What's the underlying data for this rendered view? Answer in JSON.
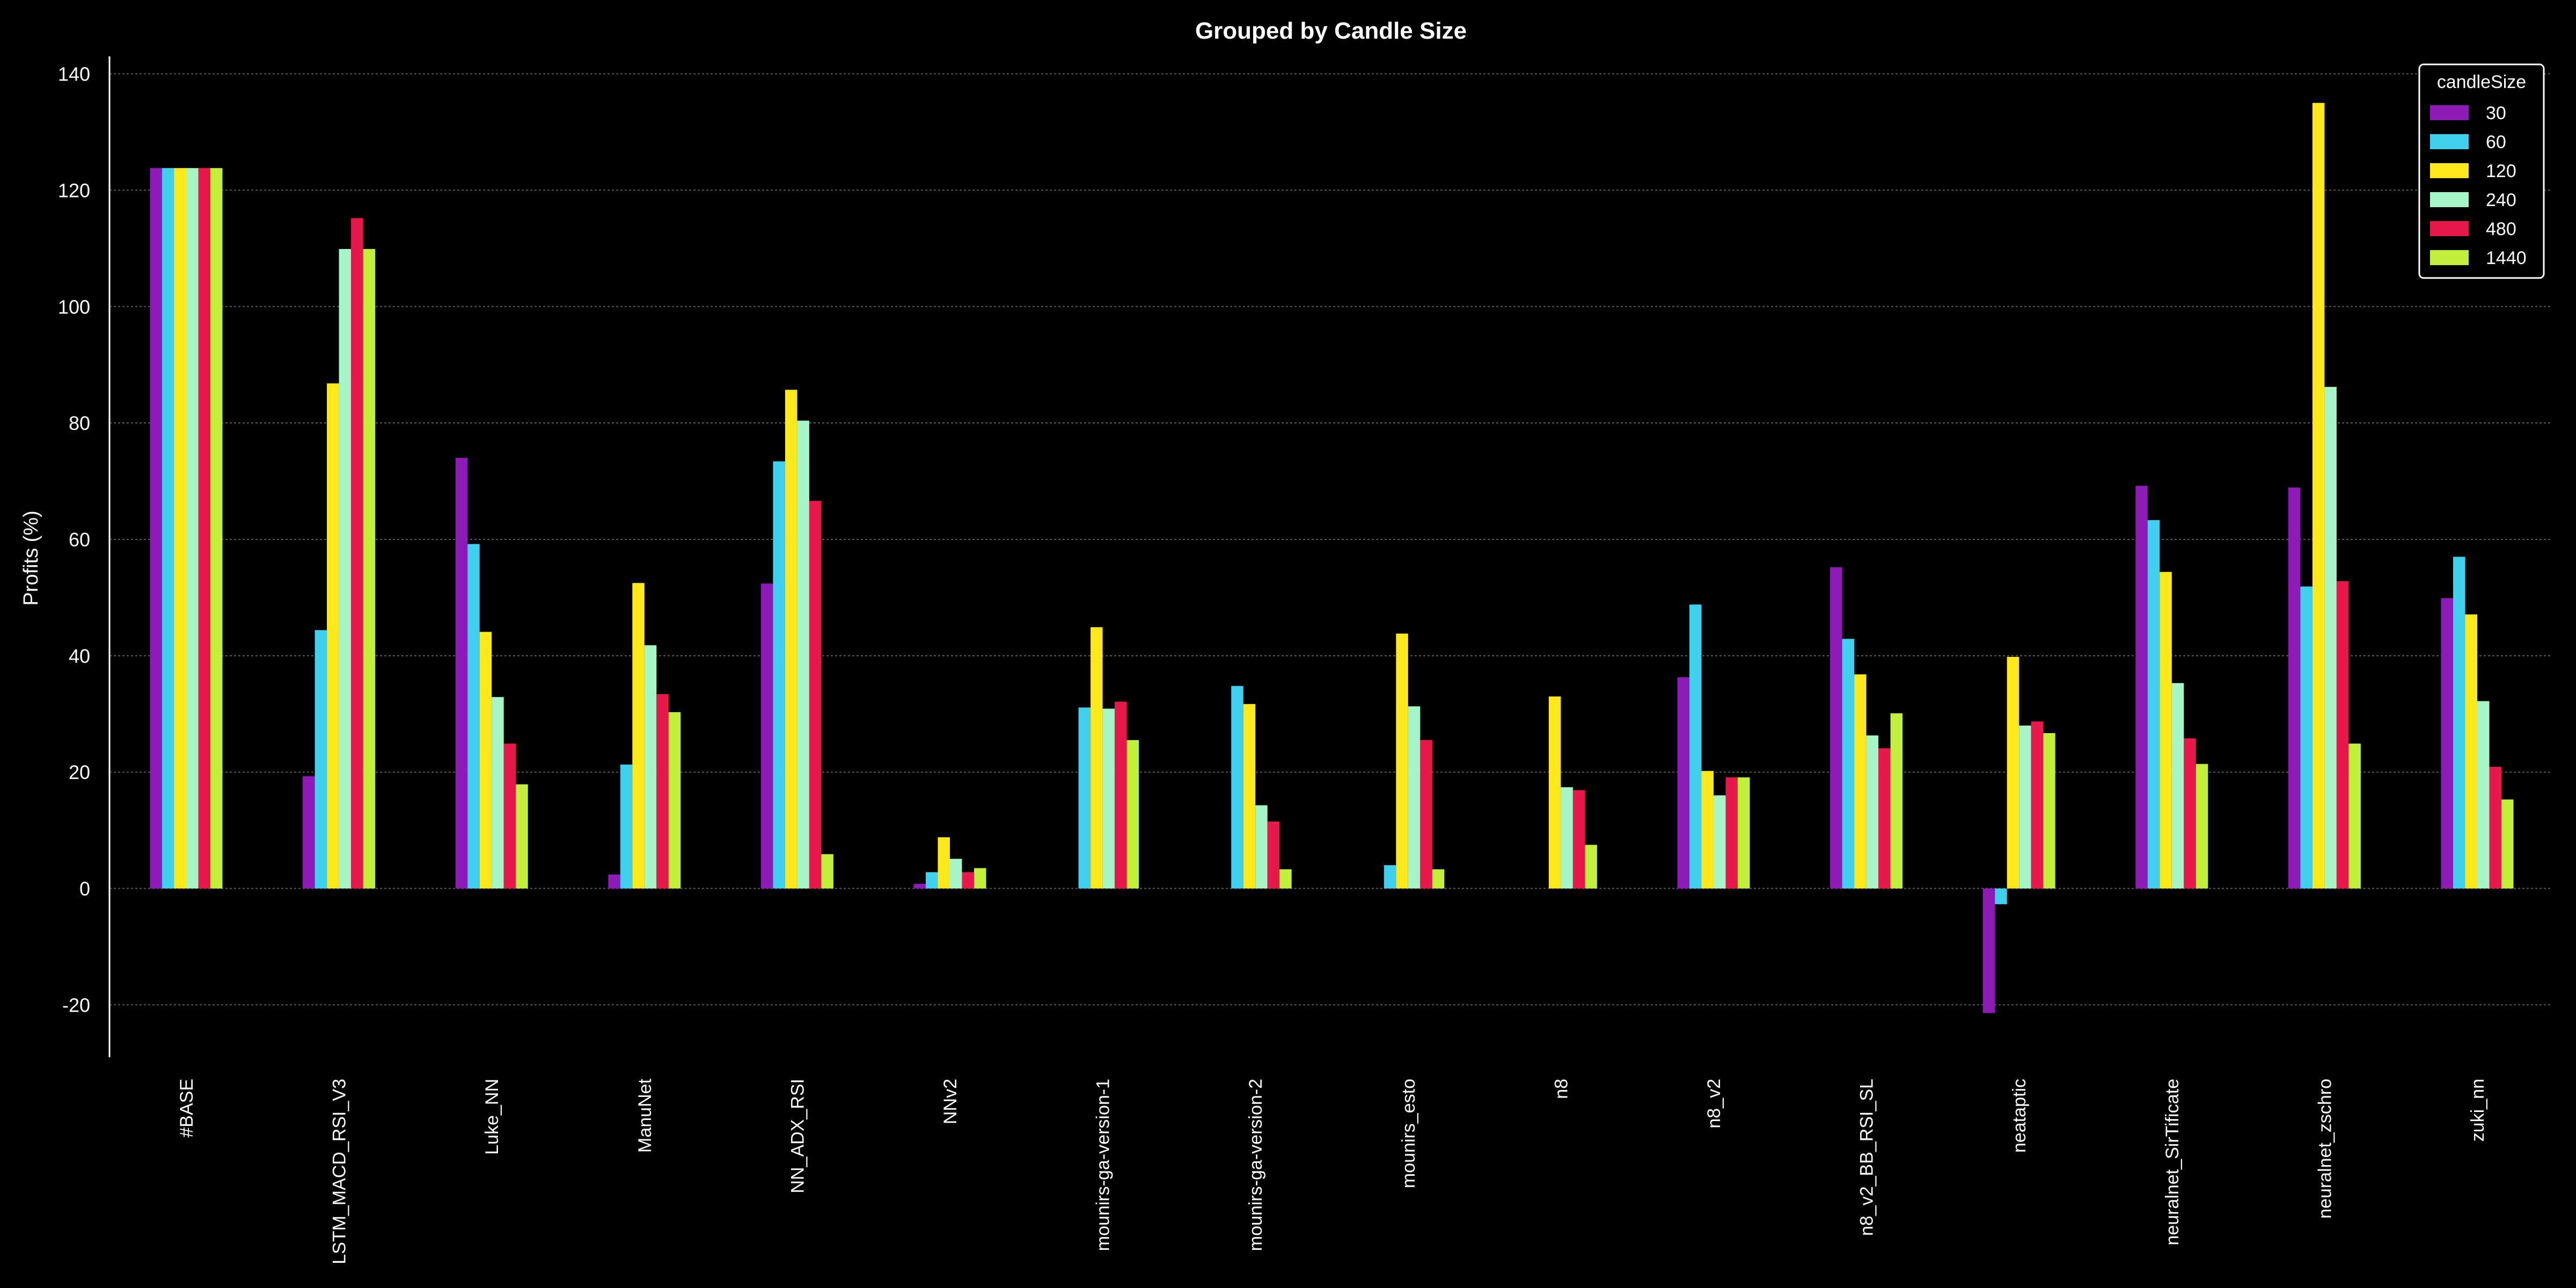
{
  "colors": {
    "background": "#000000",
    "text": "#ffffff",
    "grid": "#5a5a5a",
    "axis": "#ffffff",
    "series": [
      "#8e1bb8",
      "#3fd0f0",
      "#ffe81a",
      "#a6f5c6",
      "#e8194a",
      "#c2f03a"
    ]
  },
  "chart_data": {
    "type": "bar",
    "title": "Grouped by Candle Size",
    "xlabel": "",
    "ylabel": "Profits (%)",
    "ylim": [
      -29,
      143
    ],
    "yticks": [
      -20,
      0,
      20,
      40,
      60,
      80,
      100,
      120,
      140
    ],
    "grid": true,
    "legend_title": "candleSize",
    "legend_position": "top-right",
    "categories": [
      "#BASE",
      "LSTM_MACD_RSI_V3",
      "Luke_NN",
      "ManuNet",
      "NN_ADX_RSI",
      "NNv2",
      "mounirs-ga-version-1",
      "mounirs-ga-version-2",
      "mounirs_esto",
      "n8",
      "n8_v2",
      "n8_v2_BB_RSI_SL",
      "neataptic",
      "neuralnet_SirTificate",
      "neuralnet_zschro",
      "zuki_nn"
    ],
    "series": [
      {
        "name": "30",
        "values": [
          123.8,
          19.3,
          74.0,
          2.4,
          52.4,
          0.8,
          0.0,
          0.0,
          0.0,
          0.0,
          36.3,
          55.2,
          -21.4,
          69.2,
          68.9,
          49.9
        ]
      },
      {
        "name": "60",
        "values": [
          123.8,
          44.4,
          59.2,
          21.3,
          73.4,
          2.8,
          31.1,
          34.8,
          4.0,
          0.0,
          48.8,
          42.9,
          -2.7,
          63.3,
          51.9,
          57.0
        ]
      },
      {
        "name": "120",
        "values": [
          123.8,
          86.8,
          44.1,
          52.5,
          85.7,
          8.8,
          44.9,
          31.7,
          43.8,
          33.0,
          20.2,
          36.8,
          39.8,
          54.4,
          135.0,
          47.1
        ]
      },
      {
        "name": "240",
        "values": [
          123.8,
          109.9,
          32.9,
          41.8,
          80.4,
          5.1,
          30.9,
          14.3,
          31.3,
          17.4,
          16.0,
          26.3,
          28.0,
          35.3,
          86.2,
          32.2
        ]
      },
      {
        "name": "480",
        "values": [
          123.8,
          115.2,
          24.9,
          33.4,
          66.6,
          2.8,
          32.1,
          11.5,
          25.5,
          16.9,
          19.1,
          24.1,
          28.7,
          25.8,
          52.8,
          20.9
        ]
      },
      {
        "name": "1440",
        "values": [
          123.8,
          109.9,
          17.9,
          30.3,
          5.9,
          3.5,
          25.5,
          3.3,
          3.3,
          7.5,
          19.1,
          30.1,
          26.7,
          21.4,
          24.9,
          15.3
        ]
      }
    ]
  }
}
